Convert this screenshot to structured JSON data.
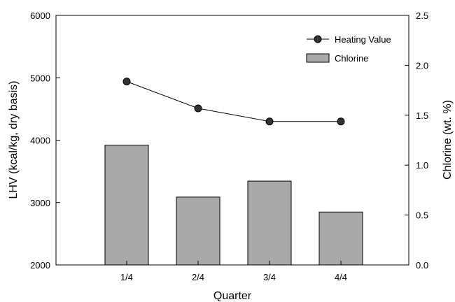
{
  "chart_data": {
    "type": "bar+line",
    "categories": [
      "1/4",
      "2/4",
      "3/4",
      "4/4"
    ],
    "xlabel": "Quarter",
    "ylabel_left": "LHV (kcal/kg, dry basis)",
    "ylabel_right": "Chlorine (wt. %)",
    "ylim_left": [
      2000,
      6000
    ],
    "yticks_left": [
      "2000",
      "3000",
      "4000",
      "5000",
      "6000"
    ],
    "ylim_right": [
      0.0,
      2.5
    ],
    "yticks_right": [
      "0.0",
      "0.5",
      "1.0",
      "1.5",
      "2.0",
      "2.5"
    ],
    "grid": false,
    "legend_position": "top-right",
    "series": [
      {
        "name": "Heating Value",
        "kind": "line",
        "axis": "left",
        "marker": "filled-circle",
        "color": "#000000",
        "values": [
          4940,
          4510,
          4300,
          4300
        ]
      },
      {
        "name": "Chlorine",
        "kind": "bar",
        "axis": "right",
        "color": "#a9a9a9",
        "values": [
          1.2,
          0.68,
          0.84,
          0.53
        ]
      }
    ]
  }
}
